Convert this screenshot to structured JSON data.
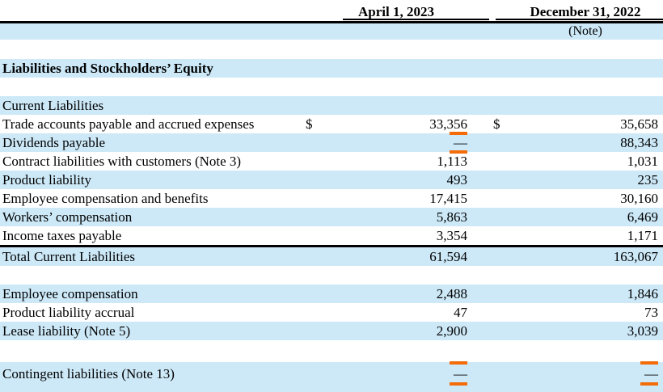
{
  "document": {
    "type": "balance-sheet-excerpt",
    "section_title": "Liabilities and Stockholders’ Equity"
  },
  "colors": {
    "row_highlight_blue": "#cde9f8",
    "orange_marker": "#f36c08",
    "rule_line": "#000000",
    "text": "#000000"
  },
  "header": {
    "col_april": "April 1, 2023",
    "col_december": "December 31, 2022",
    "note_label": "(Note)"
  },
  "table": {
    "rows": [
      {
        "label": "Current Liabilities"
      },
      {
        "label": "Trade accounts payable and accrued expenses",
        "dollar1": "$",
        "april": "33,356",
        "dollar2": "$",
        "december": "35,658"
      },
      {
        "label": "Dividends payable",
        "april": "—",
        "december": "88,343"
      },
      {
        "label": "Contract liabilities with customers (Note 3)",
        "april": "1,113",
        "december": "1,031"
      },
      {
        "label": "Product liability",
        "april": "493",
        "december": "235"
      },
      {
        "label": "Employee compensation and benefits",
        "april": "17,415",
        "december": "30,160"
      },
      {
        "label": "Workers’ compensation",
        "april": "5,863",
        "december": "6,469"
      },
      {
        "label": "Income taxes payable",
        "april": "3,354",
        "december": "1,171"
      },
      {
        "label": "Total Current Liabilities",
        "april": "61,594",
        "december": "163,067"
      },
      {
        "label": "Employee compensation",
        "april": "2,488",
        "december": "1,846"
      },
      {
        "label": "Product liability accrual",
        "april": "47",
        "december": "73"
      },
      {
        "label": "Lease liability (Note 5)",
        "april": "2,900",
        "december": "3,039"
      },
      {
        "label": "Contingent liabilities (Note 13)",
        "april": "—",
        "december": "—"
      }
    ]
  }
}
